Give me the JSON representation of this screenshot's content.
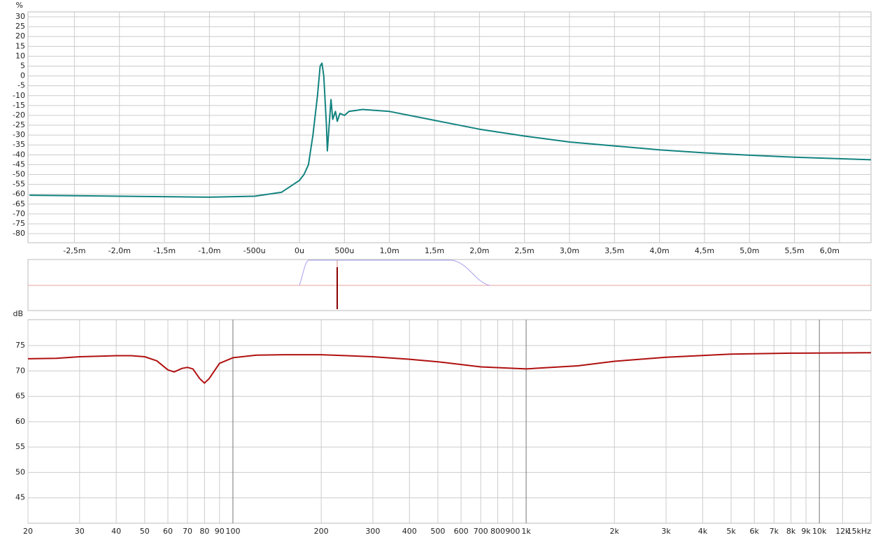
{
  "chart_data": [
    {
      "type": "line",
      "y_label": "%",
      "color": "#12837f",
      "grid": true,
      "xlim": [
        -3.016,
        6.35
      ],
      "ylim": [
        -84.6,
        32.5
      ],
      "xticks": [
        {
          "value": -2.5,
          "label": "-2,5m"
        },
        {
          "value": -2.0,
          "label": "-2,0m"
        },
        {
          "value": -1.5,
          "label": "-1,5m"
        },
        {
          "value": -1.0,
          "label": "-1,0m"
        },
        {
          "value": -0.5,
          "label": "-500u"
        },
        {
          "value": 0,
          "label": "0u"
        },
        {
          "value": 0.5,
          "label": "500u"
        },
        {
          "value": 1.0,
          "label": "1,0m"
        },
        {
          "value": 1.5,
          "label": "1,5m"
        },
        {
          "value": 2.0,
          "label": "2,0m"
        },
        {
          "value": 2.5,
          "label": "2,5m"
        },
        {
          "value": 3.0,
          "label": "3,0m"
        },
        {
          "value": 3.5,
          "label": "3,5m"
        },
        {
          "value": 4.0,
          "label": "4,0m"
        },
        {
          "value": 4.5,
          "label": "4,5m"
        },
        {
          "value": 5.0,
          "label": "5,0m"
        },
        {
          "value": 5.5,
          "label": "5,5m"
        },
        {
          "value": 6.0,
          "label": "6,0m"
        }
      ],
      "yticks": [
        30,
        25,
        20,
        15,
        10,
        5,
        0,
        -5,
        -10,
        -15,
        -20,
        -25,
        -30,
        -35,
        -40,
        -45,
        -50,
        -55,
        -60,
        -65,
        -70,
        -75,
        -80
      ],
      "x": [
        -3.0,
        -2.0,
        -1.0,
        -0.5,
        -0.2,
        0,
        0.05,
        0.1,
        0.15,
        0.2,
        0.23,
        0.25,
        0.27,
        0.3,
        0.31,
        0.33,
        0.35,
        0.37,
        0.4,
        0.42,
        0.45,
        0.5,
        0.55,
        0.7,
        1.0,
        1.5,
        2.0,
        2.5,
        3.0,
        3.5,
        4.0,
        4.5,
        5.0,
        5.5,
        6.0,
        6.35
      ],
      "values": [
        -60.5,
        -61,
        -61.5,
        -61,
        -59,
        -53,
        -50,
        -45,
        -30,
        -10,
        5,
        6.5,
        0,
        -25,
        -38,
        -25,
        -12,
        -22,
        -18,
        -23,
        -19,
        -20,
        -18,
        -17,
        -18,
        -22.5,
        -27,
        -30.5,
        -33.5,
        -35.5,
        -37.5,
        -39,
        -40.2,
        -41.2,
        -42,
        -42.5
      ]
    },
    {
      "type": "line",
      "y_label": "dB",
      "color": "#b01010",
      "grid": true,
      "log_x": true,
      "xlim": [
        20,
        15000
      ],
      "ylim": [
        40,
        80.1
      ],
      "xticks": [
        20,
        30,
        40,
        50,
        60,
        70,
        80,
        90,
        100,
        200,
        300,
        400,
        500,
        600,
        700,
        800,
        900,
        {
          "value": 1000,
          "label": "1k"
        },
        {
          "value": 2000,
          "label": "2k"
        },
        {
          "value": 3000,
          "label": "3k"
        },
        {
          "value": 4000,
          "label": "4k"
        },
        {
          "value": 5000,
          "label": "5k"
        },
        {
          "value": 6000,
          "label": "6k"
        },
        {
          "value": 7000,
          "label": "7k"
        },
        {
          "value": 8000,
          "label": "8k"
        },
        {
          "value": 9000,
          "label": "9k"
        },
        {
          "value": 10000,
          "label": "10k"
        },
        {
          "value": 12000,
          "label": "12k"
        },
        {
          "value": 15000,
          "label": "15kHz"
        }
      ],
      "yticks": [
        75,
        70,
        65,
        60,
        55,
        50,
        45
      ],
      "x": [
        20,
        25,
        30,
        35,
        40,
        45,
        50,
        55,
        60,
        63,
        67,
        70,
        73,
        77,
        80,
        83,
        90,
        100,
        120,
        150,
        200,
        300,
        400,
        500,
        700,
        1000,
        1500,
        2000,
        3000,
        5000,
        8000,
        15000
      ],
      "values": [
        72.4,
        72.5,
        72.8,
        72.9,
        73.0,
        73.0,
        72.8,
        72.0,
        70.2,
        69.8,
        70.5,
        70.7,
        70.4,
        68.5,
        67.6,
        68.5,
        71.5,
        72.6,
        73.1,
        73.2,
        73.2,
        72.8,
        72.3,
        71.8,
        70.8,
        70.4,
        71.0,
        71.9,
        72.7,
        73.3,
        73.5,
        73.6
      ]
    }
  ]
}
